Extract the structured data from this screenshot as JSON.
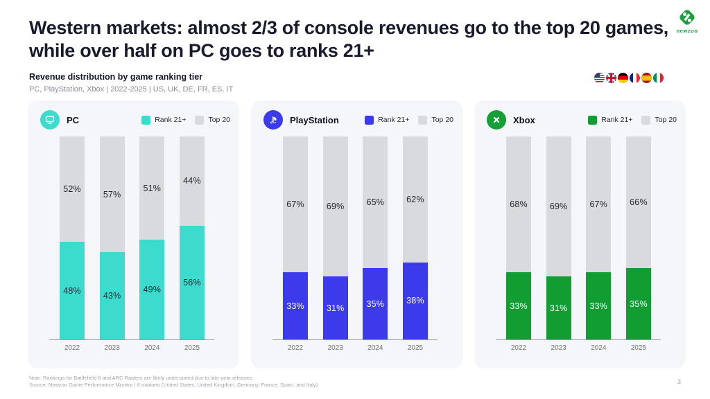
{
  "page": {
    "title_l1": "Western markets: almost 2/3 of console revenues go to the top 20 games,",
    "title_l2": "while over half on PC goes to ranks 21+",
    "subtitle": "Revenue distribution by game ranking tier",
    "scope": "PC, PlayStation, Xbox | 2022-2025 | US, UK, DE, FR, ES, IT",
    "note": "Note: Rankings for Battlefield 6 and ARC Raiders are likely understated due to late-year releases",
    "source": "Source: Newzoo Game Performance Monitor | 6 markets (United States, United Kingdom, Germany, France, Spain, and Italy)",
    "page_number": "3",
    "logo_text": "newzoo"
  },
  "colors": {
    "pc_accent": "#3cdbcd",
    "playstation_accent": "#3b3beb",
    "xbox_accent": "#129d33",
    "top20_gray": "#d9dadd",
    "brand_green": "#1e9c3e"
  },
  "legend": {
    "rank_label": "Rank 21+",
    "top_label": "Top 20"
  },
  "flags": [
    "US",
    "UK",
    "DE",
    "FR",
    "ES",
    "IT"
  ],
  "chart_data": [
    {
      "type": "bar",
      "variant": "stacked-100-percent",
      "platform": "PC",
      "accent": "#3cdbcd",
      "value_label_color": "#1f2530",
      "categories": [
        "2022",
        "2023",
        "2024",
        "2025"
      ],
      "series": [
        {
          "name": "Rank 21+",
          "values": [
            48,
            43,
            49,
            56
          ]
        },
        {
          "name": "Top 20",
          "values": [
            52,
            57,
            51,
            44
          ]
        }
      ],
      "unit": "%",
      "ylim": [
        0,
        100
      ],
      "grid": false,
      "legend_position": "top-right"
    },
    {
      "type": "bar",
      "variant": "stacked-100-percent",
      "platform": "PlayStation",
      "accent": "#3b3beb",
      "value_label_color": "#ffffff",
      "categories": [
        "2022",
        "2023",
        "2024",
        "2025"
      ],
      "series": [
        {
          "name": "Rank 21+",
          "values": [
            33,
            31,
            35,
            38
          ]
        },
        {
          "name": "Top 20",
          "values": [
            67,
            69,
            65,
            62
          ]
        }
      ],
      "unit": "%",
      "ylim": [
        0,
        100
      ],
      "grid": false,
      "legend_position": "top-right"
    },
    {
      "type": "bar",
      "variant": "stacked-100-percent",
      "platform": "Xbox",
      "accent": "#129d33",
      "value_label_color": "#ffffff",
      "categories": [
        "2022",
        "2023",
        "2024",
        "2025"
      ],
      "series": [
        {
          "name": "Rank 21+",
          "values": [
            33,
            31,
            33,
            35
          ]
        },
        {
          "name": "Top 20",
          "values": [
            68,
            69,
            67,
            66
          ]
        }
      ],
      "unit": "%",
      "ylim": [
        0,
        100
      ],
      "grid": false,
      "legend_position": "top-right"
    }
  ]
}
